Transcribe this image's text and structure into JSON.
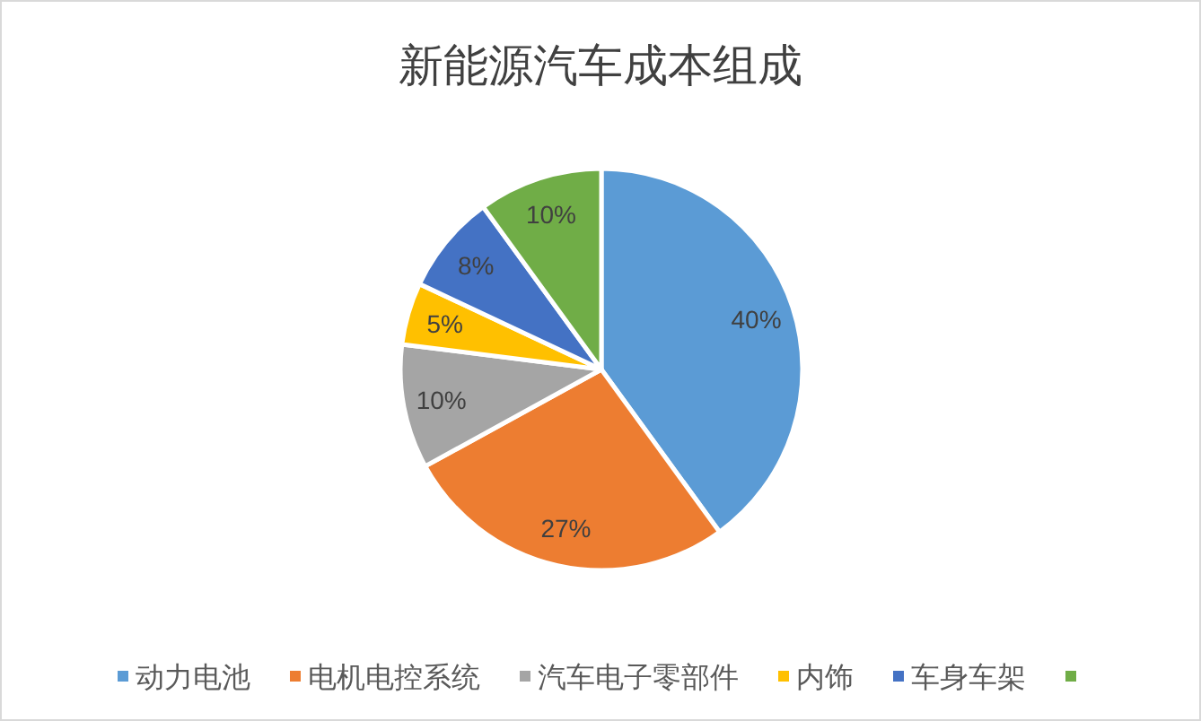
{
  "chart_data": {
    "type": "pie",
    "title": "新能源汽车成本组成",
    "categories": [
      "动力电池",
      "电机电控系统",
      "汽车电子零部件",
      "内饰",
      "车身车架",
      null
    ],
    "values": [
      40,
      27,
      10,
      5,
      8,
      10
    ],
    "colors": [
      "#5b9bd5",
      "#ed7d31",
      "#a5a5a5",
      "#ffc000",
      "#4472c4",
      "#70ad47"
    ],
    "value_labels": [
      "40%",
      "27%",
      "10%",
      "5%",
      "8%",
      "10%"
    ],
    "legend": "bottom"
  }
}
